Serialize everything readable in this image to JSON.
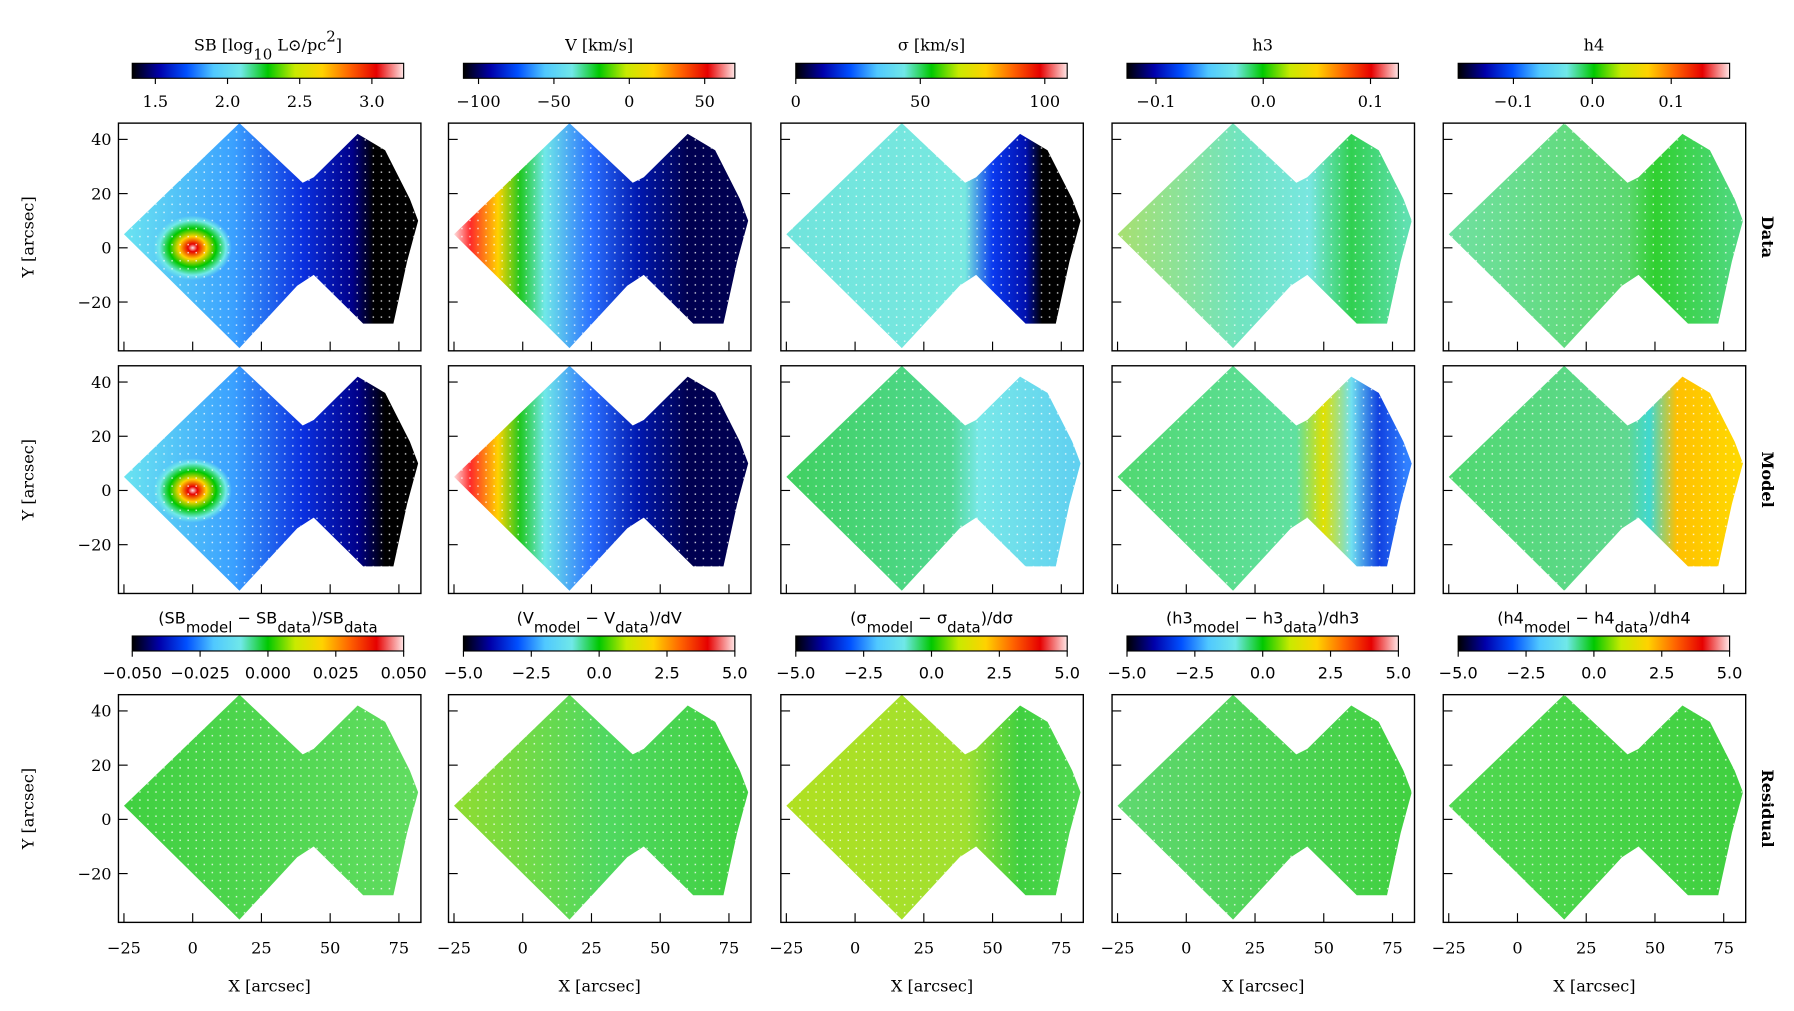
{
  "chart_data": {
    "type": "map-grid",
    "rows": [
      "Data",
      "Model",
      "Residual"
    ],
    "x_label": "X [arcsec]",
    "y_label": "Y [arcsec]",
    "xlim": [
      -27,
      83
    ],
    "xticks": [
      {
        "value": -25,
        "label": "−25"
      },
      0,
      25,
      50,
      75
    ],
    "ylim": [
      -38,
      46
    ],
    "yticks": [
      {
        "value": -20,
        "label": "−20"
      },
      0,
      20,
      40
    ],
    "colormap": [
      "#000000",
      "#0000aa",
      "#0050ff",
      "#50c8ff",
      "#70e8e8",
      "#00c800",
      "#c8ea00",
      "#ffd200",
      "#ff6400",
      "#e60000",
      "#ffe6e6"
    ],
    "colorbars": [
      {
        "label": [
          {
            "text": "SB [log"
          },
          {
            "text": "10",
            "shift": "sub"
          },
          {
            "text": " L⊙/pc"
          },
          {
            "text": "2",
            "shift": "super"
          },
          {
            "text": "]"
          }
        ],
        "clim": [
          1.34,
          3.22
        ],
        "ticks": [
          1.5,
          {
            "value": 2,
            "label": "2.0"
          },
          2.5,
          {
            "value": 3,
            "label": "3.0"
          }
        ]
      },
      {
        "label": [
          {
            "text": "V [km/s]"
          }
        ],
        "clim": [
          -110,
          70
        ],
        "ticks": [
          {
            "value": -100,
            "label": "−100"
          },
          {
            "value": -50,
            "label": "−50"
          },
          0,
          50
        ]
      },
      {
        "label": [
          {
            "text": "σ [km/s]"
          }
        ],
        "clim": [
          0,
          109
        ],
        "ticks": [
          0,
          50,
          100
        ]
      },
      {
        "label": [
          {
            "text": "h3"
          }
        ],
        "clim": [
          -0.127,
          0.126
        ],
        "ticks": [
          {
            "value": -0.1,
            "label": "−0.1"
          },
          {
            "value": 0,
            "label": "0.0"
          },
          0.1
        ]
      },
      {
        "label": [
          {
            "text": "h4"
          }
        ],
        "clim": [
          -0.17,
          0.174
        ],
        "ticks": [
          {
            "value": -0.1,
            "label": "−0.1"
          },
          {
            "value": 0,
            "label": "0.0"
          },
          0.1
        ]
      }
    ],
    "residual_colorbars": [
      {
        "label": [
          {
            "text": "(SB"
          },
          {
            "text": "model",
            "shift": "sub"
          },
          {
            "text": " − SB"
          },
          {
            "text": "data",
            "shift": "sub"
          },
          {
            "text": ")/SB"
          },
          {
            "text": "data",
            "shift": "sub"
          }
        ],
        "clim": [
          -0.05,
          0.05
        ],
        "ticks": [
          {
            "value": -0.05,
            "label": "−0.050"
          },
          {
            "value": -0.025,
            "label": "−0.025"
          },
          {
            "value": 0,
            "label": "0.000"
          },
          0.025,
          {
            "value": 0.05,
            "label": "0.050"
          }
        ]
      },
      {
        "label": [
          {
            "text": "(V"
          },
          {
            "text": "model",
            "shift": "sub"
          },
          {
            "text": " − V"
          },
          {
            "text": "data",
            "shift": "sub"
          },
          {
            "text": ")/dV"
          }
        ],
        "clim": [
          -5,
          5
        ],
        "ticks": [
          {
            "value": -5,
            "label": "−5.0"
          },
          {
            "value": -2.5,
            "label": "−2.5"
          },
          {
            "value": 0,
            "label": "0.0"
          },
          2.5,
          {
            "value": 5,
            "label": "5.0"
          }
        ]
      },
      {
        "label": [
          {
            "text": "(σ"
          },
          {
            "text": "model",
            "shift": "sub"
          },
          {
            "text": " − σ"
          },
          {
            "text": "data",
            "shift": "sub"
          },
          {
            "text": ")/dσ"
          }
        ],
        "clim": [
          -5,
          5
        ],
        "ticks": [
          {
            "value": -5,
            "label": "−5.0"
          },
          {
            "value": -2.5,
            "label": "−2.5"
          },
          {
            "value": 0,
            "label": "0.0"
          },
          2.5,
          {
            "value": 5,
            "label": "5.0"
          }
        ]
      },
      {
        "label": [
          {
            "text": "(h3"
          },
          {
            "text": "model",
            "shift": "sub"
          },
          {
            "text": " − h3"
          },
          {
            "text": "data",
            "shift": "sub"
          },
          {
            "text": ")/dh3"
          }
        ],
        "clim": [
          -5,
          5
        ],
        "ticks": [
          {
            "value": -5,
            "label": "−5.0"
          },
          {
            "value": -2.5,
            "label": "−2.5"
          },
          {
            "value": 0,
            "label": "0.0"
          },
          2.5,
          {
            "value": 5,
            "label": "5.0"
          }
        ]
      },
      {
        "label": [
          {
            "text": "(h4"
          },
          {
            "text": "model",
            "shift": "sub"
          },
          {
            "text": " − h4"
          },
          {
            "text": "data",
            "shift": "sub"
          },
          {
            "text": ")/dh4"
          }
        ],
        "clim": [
          -5,
          5
        ],
        "ticks": [
          {
            "value": -5,
            "label": "−5.0"
          },
          {
            "value": -2.5,
            "label": "−2.5"
          },
          {
            "value": 0,
            "label": "0.0"
          },
          2.5,
          {
            "value": 5,
            "label": "5.0"
          }
        ]
      }
    ]
  }
}
